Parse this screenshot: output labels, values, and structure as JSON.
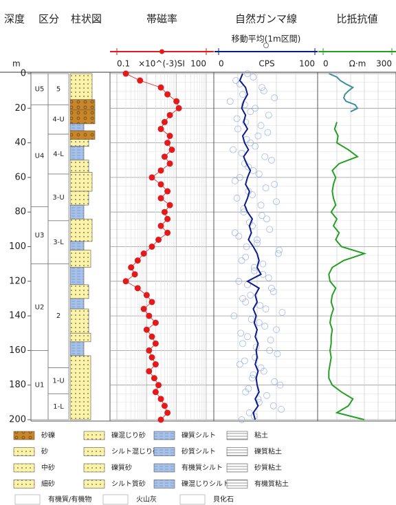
{
  "header": {
    "depth": "深度",
    "division": "区分",
    "column": "柱状図"
  },
  "depth_axis": {
    "label": "m",
    "ylim": [
      0,
      200
    ],
    "yticks": [
      0,
      20,
      40,
      60,
      80,
      100,
      120,
      140,
      160,
      180,
      200
    ]
  },
  "units": [
    {
      "label": "U5",
      "top": 0,
      "bottom": 18
    },
    {
      "label": "U4",
      "top": 18,
      "bottom": 77
    },
    {
      "label": "U3",
      "top": 77,
      "bottom": 110
    },
    {
      "label": "U2",
      "top": 110,
      "bottom": 160
    },
    {
      "label": "U1",
      "top": 160,
      "bottom": 200
    }
  ],
  "sections": [
    {
      "label": "5",
      "top": 0,
      "bottom": 18
    },
    {
      "label": "4-U",
      "top": 18,
      "bottom": 35
    },
    {
      "label": "4-L",
      "top": 35,
      "bottom": 58
    },
    {
      "label": "3-U",
      "top": 58,
      "bottom": 85
    },
    {
      "label": "3-L",
      "top": 85,
      "bottom": 110
    },
    {
      "label": "2",
      "top": 110,
      "bottom": 170
    },
    {
      "label": "1-U",
      "top": 170,
      "bottom": 185
    },
    {
      "label": "1-L",
      "top": 185,
      "bottom": 200
    }
  ],
  "layers": [
    {
      "top": 0,
      "bottom": 15,
      "lithology": "中砂"
    },
    {
      "top": 15,
      "bottom": 21,
      "lithology": "砂礫"
    },
    {
      "top": 21,
      "bottom": 29,
      "lithology": "砂礫"
    },
    {
      "top": 29,
      "bottom": 33,
      "lithology": "砂質シルト"
    },
    {
      "top": 33,
      "bottom": 38,
      "lithology": "砂礫"
    },
    {
      "top": 38,
      "bottom": 42,
      "lithology": "細砂"
    },
    {
      "top": 42,
      "bottom": 50,
      "lithology": "砂質シルト"
    },
    {
      "top": 50,
      "bottom": 57,
      "lithology": "細砂"
    },
    {
      "top": 57,
      "bottom": 68,
      "lithology": "中砂"
    },
    {
      "top": 68,
      "bottom": 76,
      "lithology": "細砂"
    },
    {
      "top": 76,
      "bottom": 84,
      "lithology": "砂質シルト"
    },
    {
      "top": 84,
      "bottom": 97,
      "lithology": "中砂"
    },
    {
      "top": 97,
      "bottom": 102,
      "lithology": "砂質シルト"
    },
    {
      "top": 102,
      "bottom": 112,
      "lithology": "砂"
    },
    {
      "top": 112,
      "bottom": 122,
      "lithology": "砂質シルト"
    },
    {
      "top": 122,
      "bottom": 130,
      "lithology": "細砂"
    },
    {
      "top": 130,
      "bottom": 136,
      "lithology": "砂質シルト"
    },
    {
      "top": 136,
      "bottom": 150,
      "lithology": "細砂"
    },
    {
      "top": 150,
      "bottom": 155,
      "lithology": "砂"
    },
    {
      "top": 155,
      "bottom": 163,
      "lithology": "砂質シルト"
    },
    {
      "top": 163,
      "bottom": 200,
      "lithology": "砂"
    }
  ],
  "chart_data": [
    {
      "type": "scatter",
      "title": "帯磁率",
      "xlabel": "×10^(-3)SI",
      "xscale": "log",
      "xlim": [
        0.1,
        100
      ],
      "xticks": [
        0.1,
        100
      ],
      "grid": true,
      "series": [
        {
          "color": "#e31a1c",
          "connect": true,
          "y": [
            0,
            4,
            8,
            12,
            16,
            20,
            24,
            28,
            32,
            36,
            40,
            44,
            48,
            52,
            56,
            60,
            64,
            68,
            72,
            76,
            80,
            84,
            88,
            92,
            96,
            100,
            104,
            108,
            112,
            116,
            120,
            124,
            128,
            132,
            136,
            140,
            144,
            148,
            152,
            156,
            160,
            164,
            168,
            172,
            176,
            180,
            184,
            188,
            192,
            196,
            200
          ],
          "values": [
            0.2,
            0.6,
            3,
            5,
            10,
            12,
            6,
            4,
            3,
            6,
            5,
            7,
            4,
            6,
            3,
            1.5,
            3,
            5,
            3,
            6,
            4,
            5,
            3,
            5,
            2.5,
            1.5,
            0.8,
            0.5,
            0.3,
            0.4,
            0.2,
            0.5,
            1,
            1.5,
            0.8,
            1.2,
            2,
            1,
            1.5,
            2,
            1.2,
            1.5,
            2,
            1.2,
            1.8,
            2.5,
            2,
            3,
            4,
            5,
            3
          ]
        }
      ]
    },
    {
      "type": "line",
      "title": "自然ガンマ線",
      "xlabel": "CPS",
      "xlim": [
        0,
        100
      ],
      "xticks": [
        0,
        100
      ],
      "grid": true,
      "series": [
        {
          "style": "markers",
          "color": "#8fa8e0",
          "y": [
            0,
            4,
            8,
            12,
            16,
            20,
            24,
            28,
            32,
            36,
            40,
            44,
            48,
            52,
            56,
            60,
            64,
            68,
            72,
            76,
            80,
            84,
            88,
            92,
            96,
            100,
            104,
            108,
            112,
            116,
            120,
            124,
            128,
            132,
            136,
            140,
            144,
            148,
            152,
            156,
            160,
            164,
            168,
            172,
            176,
            180,
            184,
            188,
            192,
            196,
            200,
            2,
            6,
            10,
            14,
            18,
            22,
            26,
            30,
            34,
            38,
            42,
            46,
            50,
            54,
            58,
            62,
            66,
            70,
            74,
            78,
            82,
            86,
            90,
            94,
            98,
            102,
            106,
            110,
            114,
            118,
            122,
            126,
            130,
            134,
            138,
            142,
            146,
            150,
            154,
            158,
            162,
            166,
            170,
            174,
            178,
            182,
            186,
            190,
            194,
            198
          ],
          "values": [
            30,
            18,
            45,
            25,
            12,
            38,
            52,
            28,
            20,
            41,
            33,
            15,
            48,
            27,
            36,
            22,
            58,
            31,
            19,
            44,
            26,
            50,
            35,
            17,
            40,
            29,
            62,
            24,
            37,
            46,
            21,
            55,
            33,
            28,
            49,
            16,
            42,
            60,
            30,
            25,
            53,
            38,
            22,
            47,
            35,
            64,
            28,
            41,
            57,
            32,
            24,
            36,
            22,
            47,
            58,
            27,
            33,
            19,
            44,
            51,
            29,
            38,
            24,
            55,
            31,
            42,
            17,
            49,
            35,
            60,
            26,
            45,
            32,
            53,
            21,
            40,
            63,
            28,
            46,
            37,
            52,
            30,
            57,
            25,
            43,
            66,
            34,
            48,
            23,
            54,
            39,
            61,
            27,
            44,
            36,
            58,
            31,
            50,
            42,
            65,
            37
          ]
        },
        {
          "name": "移動平均(1m区間)",
          "style": "line",
          "color": "#0a1a8a",
          "y": [
            0,
            4,
            8,
            12,
            16,
            20,
            24,
            28,
            32,
            36,
            40,
            44,
            48,
            52,
            56,
            60,
            64,
            68,
            72,
            76,
            80,
            84,
            88,
            92,
            96,
            100,
            104,
            108,
            112,
            116,
            120,
            124,
            128,
            132,
            136,
            140,
            144,
            148,
            152,
            156,
            160,
            164,
            168,
            172,
            176,
            180,
            184,
            188,
            192,
            196,
            200
          ],
          "values": [
            25,
            22,
            28,
            30,
            26,
            24,
            28,
            26,
            30,
            25,
            27,
            31,
            26,
            29,
            33,
            30,
            28,
            32,
            30,
            27,
            30,
            35,
            32,
            34,
            31,
            36,
            40,
            42,
            40,
            44,
            30,
            42,
            38,
            40,
            36,
            39,
            37,
            40,
            38,
            41,
            39,
            40,
            38,
            41,
            39,
            40,
            42,
            38,
            41,
            36,
            38
          ]
        }
      ]
    },
    {
      "type": "line",
      "title": "比抵抗値",
      "xlabel": "Ω·m",
      "xlim": [
        0,
        300
      ],
      "xticks": [
        0,
        300
      ],
      "grid": true,
      "series": [
        {
          "style": "line",
          "color": "#3d8f9c",
          "y": [
            0,
            2,
            4,
            6,
            8,
            10,
            12,
            14,
            16,
            18,
            20,
            22
          ],
          "values": [
            25,
            60,
            75,
            100,
            130,
            110,
            95,
            90,
            100,
            140,
            150,
            120
          ]
        },
        {
          "style": "line",
          "color": "#23a023",
          "y": [
            28,
            32,
            36,
            40,
            44,
            48,
            52,
            56,
            60,
            64,
            68,
            72,
            76,
            80,
            84,
            88,
            92,
            96,
            100,
            104,
            108,
            112,
            116,
            120,
            124,
            128,
            132,
            136,
            140,
            144,
            148,
            152,
            156,
            160,
            164,
            168,
            172,
            176,
            180,
            184,
            188,
            192,
            196,
            200
          ],
          "values": [
            60,
            50,
            65,
            60,
            110,
            150,
            70,
            40,
            55,
            45,
            40,
            45,
            55,
            35,
            60,
            45,
            70,
            55,
            80,
            180,
            90,
            40,
            25,
            30,
            55,
            40,
            35,
            45,
            35,
            30,
            40,
            35,
            35,
            30,
            35,
            30,
            25,
            25,
            40,
            80,
            130,
            110,
            60,
            180
          ]
        }
      ]
    }
  ],
  "legend": {
    "items": [
      "砂礫",
      "砂",
      "中砂",
      "細砂",
      "礫混じり砂",
      "シルト混じり砂",
      "礫質砂",
      "シルト質砂",
      "礫質シルト",
      "砂質シルト",
      "有機質シルト",
      "礫混じりシルト",
      "粘土",
      "礫質粘土",
      "砂質粘土",
      "有機質粘土"
    ],
    "extras": [
      "有機質/有機物",
      "火山灰",
      "貝化石"
    ]
  }
}
